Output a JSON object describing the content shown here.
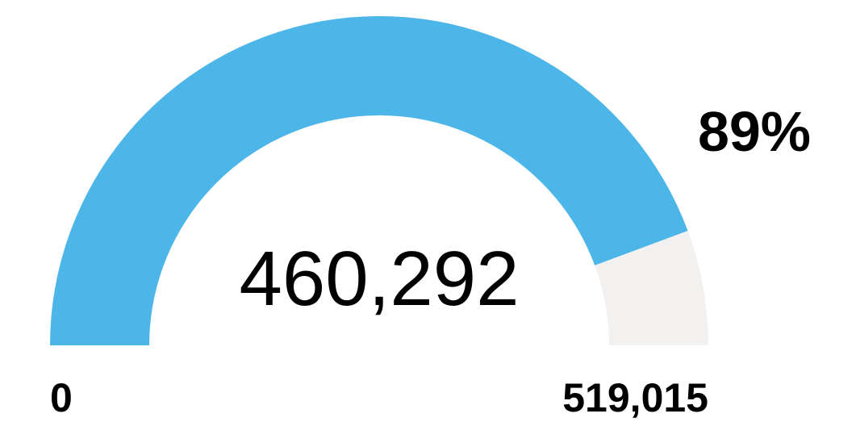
{
  "chart_data": {
    "type": "gauge",
    "value": 460292,
    "value_label": "460,292",
    "ylim": [
      0,
      519015
    ],
    "yticks": [
      0,
      {
        "value": 519015,
        "label": "519,015"
      }
    ],
    "annotation": "89%",
    "color": "#4db6e8",
    "track_color": "#f2f1f0"
  }
}
